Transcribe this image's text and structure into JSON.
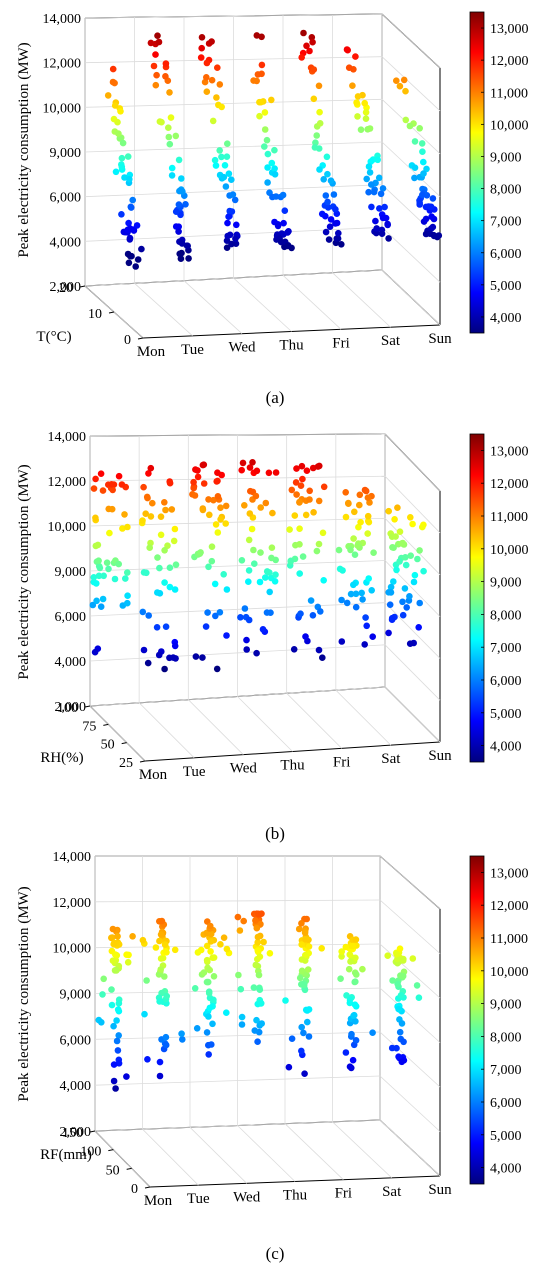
{
  "figure": {
    "panels": [
      {
        "caption": "(a)",
        "zlabel": "Peak electricity consumption (MW)",
        "ylabel": "T(°C)",
        "ytick_labels": [
          "0",
          "10",
          "20"
        ]
      },
      {
        "caption": "(b)",
        "zlabel": "Peak electricity consumption (MW)",
        "ylabel": "RH(%)",
        "ytick_labels": [
          "25",
          "50",
          "75",
          "100"
        ]
      },
      {
        "caption": "(c)",
        "zlabel": "Peak electricity consumption (MW)",
        "ylabel": "RF(mm)",
        "ytick_labels": [
          "0",
          "50",
          "100",
          "150"
        ]
      }
    ],
    "zticks": [
      "2,000",
      "4,000",
      "6,000",
      "9,000",
      "10,000",
      "12,000",
      "14,000"
    ],
    "xticks": [
      "Mon",
      "Tue",
      "Wed",
      "Thu",
      "Fri",
      "Sat",
      "Sun"
    ],
    "colorbar_ticks": [
      "4,000",
      "5,000",
      "6,000",
      "7,000",
      "8,000",
      "9,000",
      "10,000",
      "11,000",
      "12,000",
      "13,000"
    ],
    "colormap": [
      "#00007f",
      "#0000ff",
      "#007fff",
      "#00ffff",
      "#7fff7f",
      "#ffff00",
      "#ff7f00",
      "#ff0000",
      "#7f0000"
    ]
  },
  "chart_data": [
    {
      "type": "scatter",
      "title": "",
      "xlabel": "",
      "ylabel": "T(°C)",
      "zlabel": "Peak electricity consumption (MW)",
      "x_categories": [
        "Mon",
        "Tue",
        "Wed",
        "Thu",
        "Fri",
        "Sat",
        "Sun"
      ],
      "yticks": [
        0,
        10,
        20
      ],
      "zticks": [
        2000,
        4000,
        6000,
        9000,
        10000,
        12000,
        14000
      ],
      "color_range": [
        3500,
        13500
      ],
      "grid": true,
      "colorbar": "right",
      "series": [
        {
          "category": "Mon",
          "peak_max": 13200,
          "peak_min": 3000
        },
        {
          "category": "Tue",
          "peak_max": 13300,
          "peak_min": 3200
        },
        {
          "category": "Wed",
          "peak_max": 13300,
          "peak_min": 3400
        },
        {
          "category": "Thu",
          "peak_max": 13400,
          "peak_min": 3500
        },
        {
          "category": "Fri",
          "peak_max": 13200,
          "peak_min": 3600
        },
        {
          "category": "Sat",
          "peak_max": 12500,
          "peak_min": 3700
        },
        {
          "category": "Sun",
          "peak_max": 11000,
          "peak_min": 3700
        }
      ]
    },
    {
      "type": "scatter",
      "title": "",
      "xlabel": "",
      "ylabel": "RH(%)",
      "zlabel": "Peak electricity consumption (MW)",
      "x_categories": [
        "Mon",
        "Tue",
        "Wed",
        "Thu",
        "Fri",
        "Sat",
        "Sun"
      ],
      "yticks": [
        25,
        50,
        75,
        100
      ],
      "zticks": [
        2000,
        4000,
        6000,
        9000,
        10000,
        12000,
        14000
      ],
      "color_range": [
        3500,
        13500
      ],
      "grid": true,
      "colorbar": "right",
      "series": [
        {
          "category": "Mon",
          "peak_max": 12500,
          "peak_min": 3000
        },
        {
          "category": "Tue",
          "peak_max": 12600,
          "peak_min": 3200
        },
        {
          "category": "Wed",
          "peak_max": 12700,
          "peak_min": 3300
        },
        {
          "category": "Thu",
          "peak_max": 13000,
          "peak_min": 3500
        },
        {
          "category": "Fri",
          "peak_max": 12800,
          "peak_min": 3600
        },
        {
          "category": "Sat",
          "peak_max": 11500,
          "peak_min": 3700
        },
        {
          "category": "Sun",
          "peak_max": 10500,
          "peak_min": 3700
        }
      ]
    },
    {
      "type": "scatter",
      "title": "",
      "xlabel": "",
      "ylabel": "RF(mm)",
      "zlabel": "Peak electricity consumption (MW)",
      "x_categories": [
        "Mon",
        "Tue",
        "Wed",
        "Thu",
        "Fri",
        "Sat",
        "Sun"
      ],
      "yticks": [
        0,
        50,
        100,
        150
      ],
      "zticks": [
        2000,
        4000,
        6000,
        9000,
        10000,
        12000,
        14000
      ],
      "color_range": [
        3500,
        13500
      ],
      "grid": true,
      "colorbar": "right",
      "series": [
        {
          "category": "Mon",
          "peak_max": 10800,
          "peak_min": 3600
        },
        {
          "category": "Tue",
          "peak_max": 11200,
          "peak_min": 3800
        },
        {
          "category": "Wed",
          "peak_max": 11200,
          "peak_min": 3900
        },
        {
          "category": "Thu",
          "peak_max": 11600,
          "peak_min": 3900
        },
        {
          "category": "Fri",
          "peak_max": 11200,
          "peak_min": 3900
        },
        {
          "category": "Sat",
          "peak_max": 10400,
          "peak_min": 3900
        },
        {
          "category": "Sun",
          "peak_max": 9800,
          "peak_min": 3900
        }
      ]
    }
  ]
}
